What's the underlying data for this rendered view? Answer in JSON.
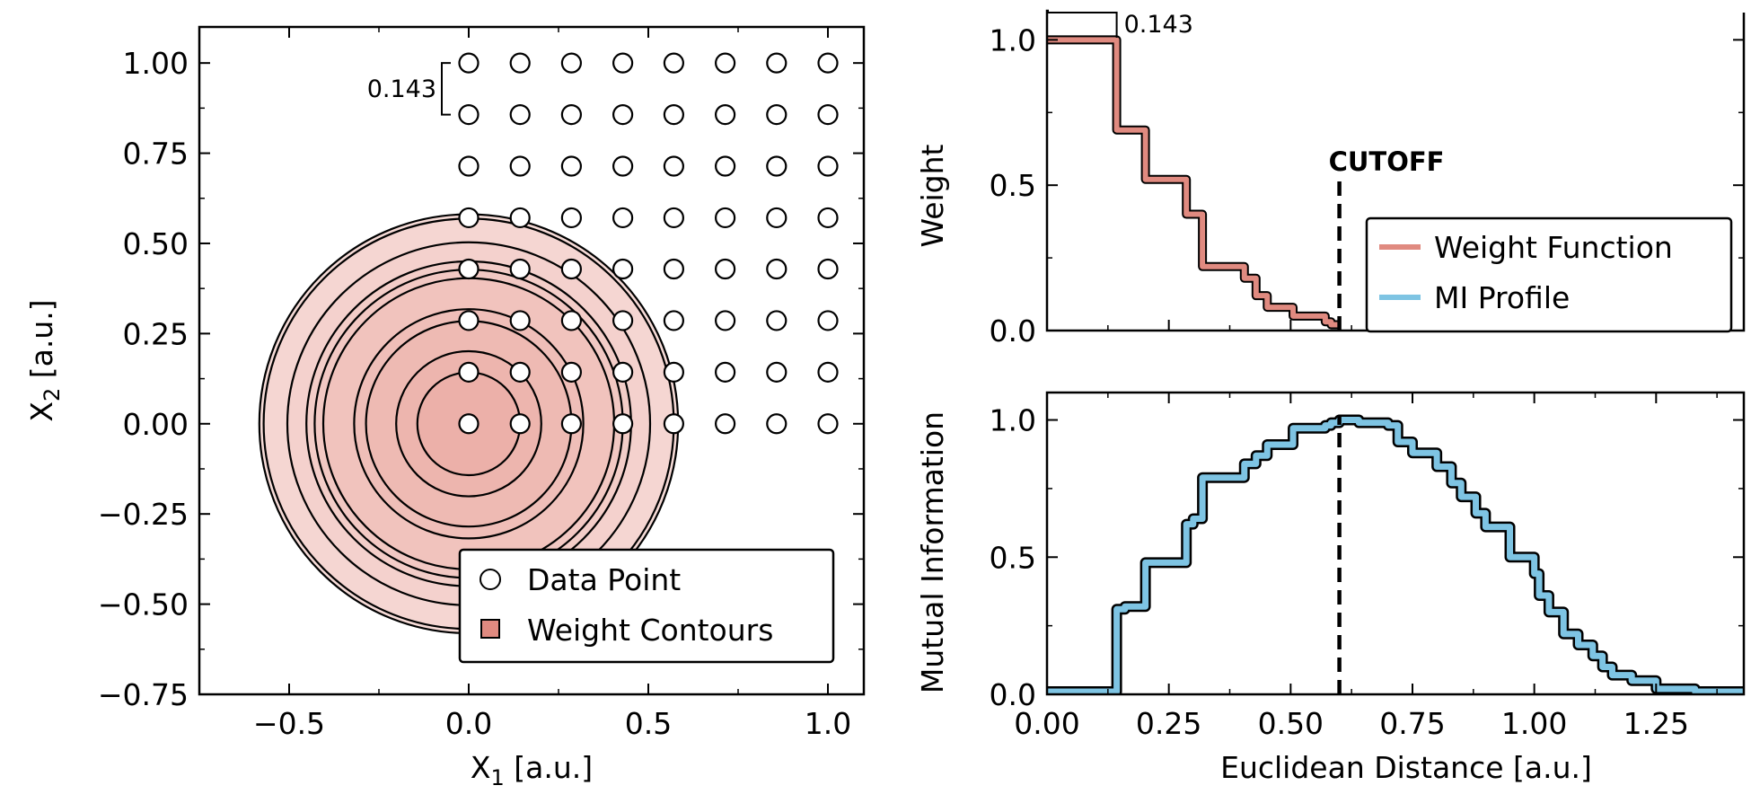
{
  "colors": {
    "weight": "#E08A80",
    "weight_fill": "#E8A097",
    "mi": "#7EC4E3",
    "edge": "#000000"
  },
  "chart_data": [
    {
      "type": "scatter",
      "title": "",
      "xlabel_main": "X",
      "xlabel_sub": "1",
      "xlabel_unit": " [a.u.]",
      "ylabel_main": "X",
      "ylabel_sub": "2",
      "ylabel_unit": " [a.u.]",
      "xlim": [
        -0.75,
        1.1
      ],
      "ylim": [
        -0.75,
        1.1
      ],
      "x_ticks": [
        -0.5,
        0.0,
        0.5,
        1.0
      ],
      "x_tick_labels": [
        "−0.5",
        "0.0",
        "0.5",
        "1.0"
      ],
      "y_ticks": [
        -0.75,
        -0.5,
        -0.25,
        0.0,
        0.25,
        0.5,
        0.75,
        1.0
      ],
      "y_tick_labels": [
        "−0.75",
        "−0.50",
        "−0.25",
        "0.00",
        "0.25",
        "0.50",
        "0.75",
        "1.00"
      ],
      "grid": false,
      "grid_spacing": 0.143,
      "spacing_label": "0.143",
      "points_x": [
        0,
        0.143,
        0.286,
        0.429,
        0.571,
        0.714,
        0.857,
        1.0
      ],
      "points_y": [
        0,
        0.143,
        0.286,
        0.429,
        0.571,
        0.714,
        0.857,
        1.0
      ],
      "contour_center": [
        0,
        0
      ],
      "contour_radii": [
        0.143,
        0.202,
        0.286,
        0.319,
        0.405,
        0.429,
        0.452,
        0.505,
        0.571,
        0.583
      ],
      "legend_position": "lower-right",
      "legend": [
        {
          "label": "Data Point",
          "marker": "circle"
        },
        {
          "label": "Weight Contours",
          "marker": "square"
        }
      ]
    },
    {
      "type": "line",
      "title": "",
      "xlabel": "",
      "ylabel": "Weight",
      "xlim": [
        0,
        1.43
      ],
      "ylim": [
        0,
        1.1
      ],
      "y_ticks": [
        0.0,
        0.5,
        1.0
      ],
      "y_tick_labels": [
        "0.0",
        "0.5",
        "1.0"
      ],
      "grid": false,
      "bracket_label": "0.143",
      "cutoff_label": "CUTOFF",
      "cutoff_x": 0.6,
      "series": [
        {
          "name": "Weight Function",
          "step_x": [
            0,
            0.143,
            0.202,
            0.286,
            0.319,
            0.405,
            0.429,
            0.452,
            0.505,
            0.571,
            0.583,
            0.6
          ],
          "step_y": [
            1.0,
            0.69,
            0.52,
            0.4,
            0.22,
            0.18,
            0.12,
            0.08,
            0.05,
            0.03,
            0.02,
            0.02
          ]
        }
      ],
      "legend_position": "right",
      "legend": [
        {
          "label": "Weight Function"
        },
        {
          "label": "MI Profile"
        }
      ]
    },
    {
      "type": "line",
      "title": "",
      "xlabel": "Euclidean Distance [a.u.]",
      "ylabel": "Mutual Information",
      "xlim": [
        0,
        1.43
      ],
      "ylim": [
        0,
        1.1
      ],
      "x_ticks": [
        0.0,
        0.25,
        0.5,
        0.75,
        1.0,
        1.25
      ],
      "x_tick_labels": [
        "0.00",
        "0.25",
        "0.50",
        "0.75",
        "1.00",
        "1.25"
      ],
      "y_ticks": [
        0.0,
        0.5,
        1.0
      ],
      "y_tick_labels": [
        "0.0",
        "0.5",
        "1.0"
      ],
      "grid": false,
      "cutoff_x": 0.6,
      "series": [
        {
          "name": "MI Profile",
          "step_x": [
            0,
            0.143,
            0.16,
            0.202,
            0.286,
            0.3,
            0.319,
            0.405,
            0.429,
            0.452,
            0.505,
            0.571,
            0.583,
            0.6,
            0.64,
            0.7,
            0.72,
            0.75,
            0.8,
            0.83,
            0.85,
            0.88,
            0.9,
            0.95,
            1.0,
            1.01,
            1.03,
            1.06,
            1.09,
            1.12,
            1.14,
            1.16,
            1.2,
            1.25,
            1.33
          ],
          "step_y": [
            0.01,
            0.31,
            0.32,
            0.48,
            0.62,
            0.64,
            0.79,
            0.84,
            0.87,
            0.91,
            0.97,
            0.98,
            0.99,
            1.0,
            0.99,
            0.98,
            0.92,
            0.88,
            0.83,
            0.77,
            0.72,
            0.66,
            0.61,
            0.5,
            0.44,
            0.36,
            0.3,
            0.22,
            0.18,
            0.14,
            0.1,
            0.07,
            0.05,
            0.02,
            0.01
          ]
        }
      ]
    }
  ]
}
